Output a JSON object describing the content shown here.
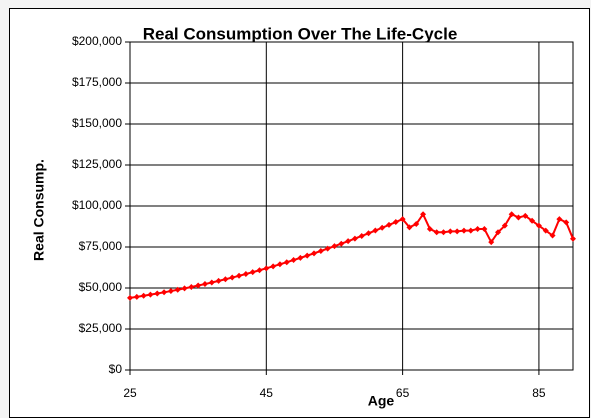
{
  "chart_data": {
    "type": "line",
    "title": "Real Consumption Over The Life-Cycle",
    "ylabel": "Real Consump.",
    "xlabel": "Age",
    "x": [
      25,
      26,
      27,
      28,
      29,
      30,
      31,
      32,
      33,
      34,
      35,
      36,
      37,
      38,
      39,
      40,
      41,
      42,
      43,
      44,
      45,
      46,
      47,
      48,
      49,
      50,
      51,
      52,
      53,
      54,
      55,
      56,
      57,
      58,
      59,
      60,
      61,
      62,
      63,
      64,
      65,
      66,
      67,
      68,
      69,
      70,
      71,
      72,
      73,
      74,
      75,
      76,
      77,
      78,
      79,
      80,
      81,
      82,
      83,
      84,
      85,
      86,
      87,
      88,
      89,
      90
    ],
    "series": [
      {
        "name": "Real Consump.",
        "color": "#ff0000",
        "values": [
          44000,
          44615,
          45260,
          45935,
          46640,
          47375,
          48140,
          48935,
          49760,
          50615,
          51500,
          52415,
          53360,
          54335,
          55340,
          56375,
          57440,
          58535,
          59660,
          60815,
          62000,
          63215,
          64460,
          65735,
          67040,
          68375,
          69740,
          71135,
          72560,
          74015,
          75500,
          77015,
          78560,
          80135,
          81740,
          83375,
          85040,
          86735,
          88460,
          90215,
          92000,
          87000,
          89000,
          95000,
          86000,
          84000,
          84000,
          84500,
          84500,
          85000,
          85000,
          86000,
          86000,
          78000,
          84000,
          88000,
          95000,
          93000,
          94000,
          91000,
          88000,
          85000,
          82000,
          92000,
          90000,
          80000
        ]
      }
    ],
    "xlim": [
      25,
      90
    ],
    "xticks": [
      25,
      45,
      65,
      85
    ],
    "ylim": [
      0,
      200000
    ],
    "yticks": [
      {
        "value": 0,
        "label": "$0"
      },
      {
        "value": 25000,
        "label": "$25,000"
      },
      {
        "value": 50000,
        "label": "$50,000"
      },
      {
        "value": 75000,
        "label": "$75,000"
      },
      {
        "value": 100000,
        "label": "$100,000"
      },
      {
        "value": 125000,
        "label": "$125,000"
      },
      {
        "value": 150000,
        "label": "$150,000"
      },
      {
        "value": 175000,
        "label": "$175,000"
      },
      {
        "value": 200000,
        "label": "$200,000"
      }
    ],
    "grid": true
  }
}
